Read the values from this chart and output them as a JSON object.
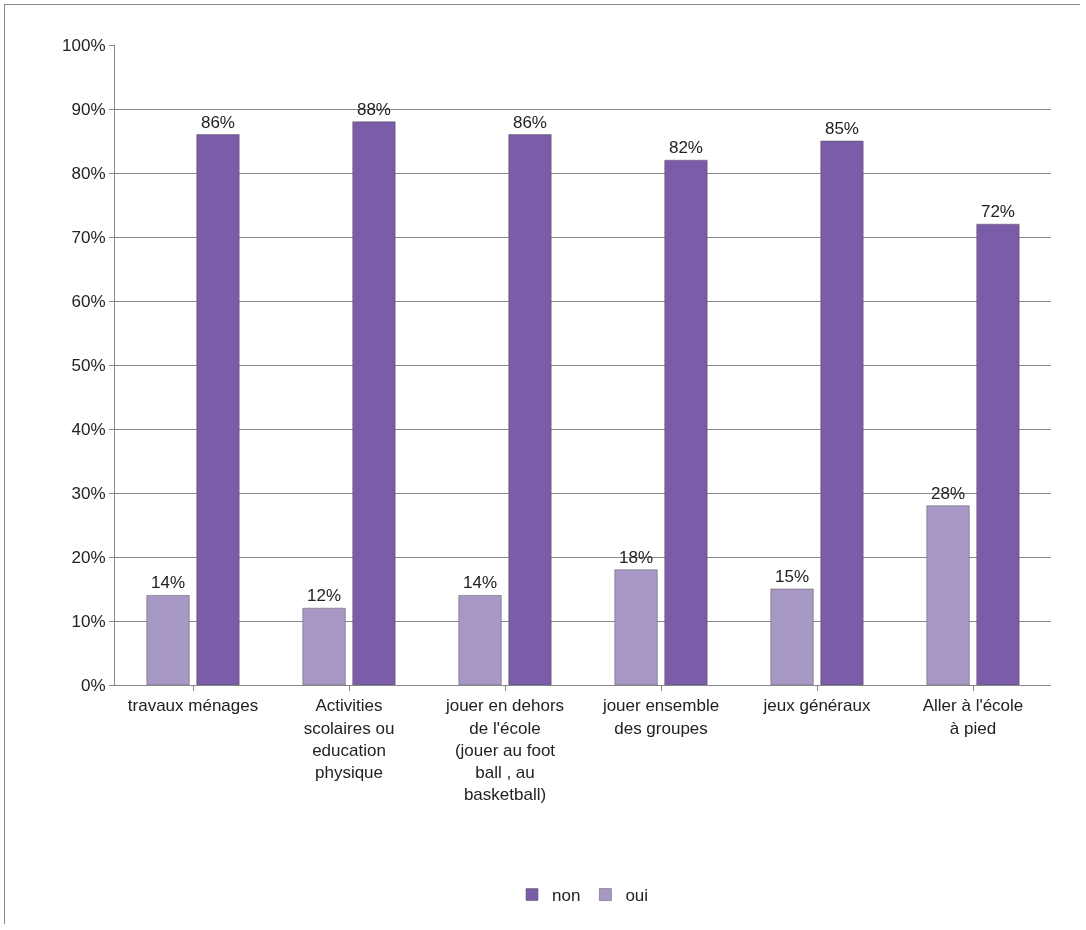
{
  "chart_data": {
    "type": "bar",
    "categories": [
      "travaux ménages",
      "Activities scolaires ou education physique",
      "jouer en dehors de l'école (jouer au foot ball , au basketball)",
      "jouer ensemble des groupes",
      "jeux généraux",
      "Aller à l'école à pied"
    ],
    "series": [
      {
        "name": "oui",
        "color": "#a898c6",
        "values": [
          14,
          12,
          14,
          18,
          15,
          28
        ],
        "value_labels": [
          "14%",
          "12%",
          "14%",
          "18%",
          "15%",
          "28%"
        ]
      },
      {
        "name": "non",
        "color": "#7a5ca8",
        "values": [
          86,
          88,
          86,
          82,
          85,
          72
        ],
        "value_labels": [
          "86%",
          "88%",
          "86%",
          "82%",
          "85%",
          "72%"
        ]
      }
    ],
    "ylim": [
      0,
      100
    ],
    "yticks": [
      {
        "value": 0,
        "label": "0%"
      },
      {
        "value": 10,
        "label": "10%"
      },
      {
        "value": 20,
        "label": "20%"
      },
      {
        "value": 30,
        "label": "30%"
      },
      {
        "value": 40,
        "label": "40%"
      },
      {
        "value": 50,
        "label": "50%"
      },
      {
        "value": 60,
        "label": "60%"
      },
      {
        "value": 70,
        "label": "70%"
      },
      {
        "value": 80,
        "label": "80%"
      },
      {
        "value": 90,
        "label": "90%"
      },
      {
        "value": 100,
        "label": "100%"
      }
    ],
    "grid": "y",
    "legend": "bottom"
  }
}
